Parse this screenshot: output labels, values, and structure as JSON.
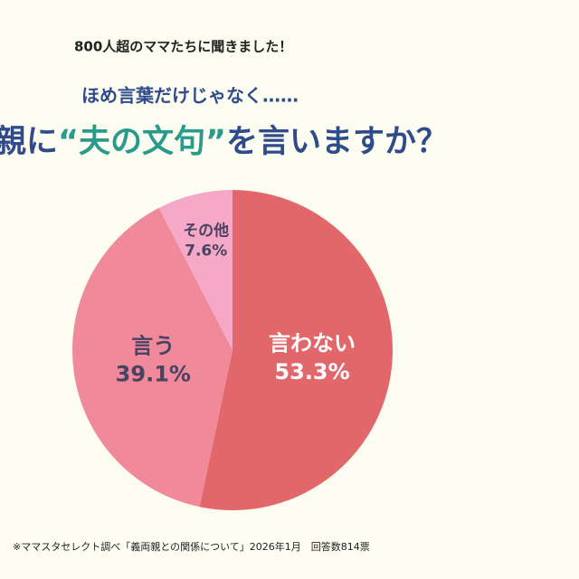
{
  "chart_data": {
    "type": "pie",
    "kicker": "800人超のママたちに聞きました！",
    "subtitle": "ほめ言葉だけじゃなく……",
    "title_parts": [
      "親に",
      "“夫の文句”",
      "を言いますか？"
    ],
    "categories": [
      "言わない",
      "言う",
      "その他"
    ],
    "values": [
      53.3,
      39.1,
      7.6
    ],
    "value_labels": [
      "53.3%",
      "39.1%",
      "7.6%"
    ],
    "colors": [
      "#e2676b",
      "#f0899a",
      "#f5a9c6"
    ],
    "source": "※ママスタセレクト調べ「義両親との関係について」2026年1月　回答数814票"
  }
}
